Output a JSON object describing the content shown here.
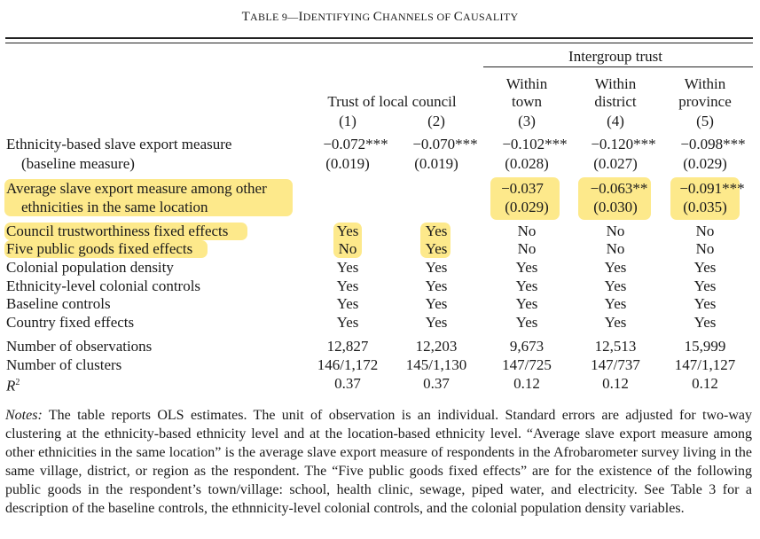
{
  "title": {
    "prefix": "T",
    "rest": "ABLE 9—",
    "w1": "I",
    "r1": "DENTIFYING ",
    "w2": "C",
    "r2": "HANNELS OF ",
    "w3": "C",
    "r3": "AUSALITY"
  },
  "headers": {
    "group_left": "Trust of local council",
    "group_right": "Intergroup trust",
    "cols": [
      {
        "l1": "",
        "l2": "",
        "num": "(1)"
      },
      {
        "l1": "",
        "l2": "",
        "num": "(2)"
      },
      {
        "l1": "Within",
        "l2": "town",
        "num": "(3)"
      },
      {
        "l1": "Within",
        "l2": "district",
        "num": "(4)"
      },
      {
        "l1": "Within",
        "l2": "province",
        "num": "(5)"
      }
    ]
  },
  "rows": {
    "eth": {
      "label1": "Ethnicity-based slave export measure",
      "label2": "(baseline measure)",
      "coef": [
        "−0.072***",
        "−0.070***",
        "−0.102***",
        "−0.120***",
        "−0.098***"
      ],
      "se": [
        "(0.019)",
        "(0.019)",
        "(0.028)",
        "(0.027)",
        "(0.029)"
      ]
    },
    "avg": {
      "label1": "Average slave export measure among other",
      "label2": "ethnicities in the same location",
      "coef": [
        "",
        "",
        "−0.037",
        "−0.063**",
        "−0.091***"
      ],
      "se": [
        "",
        "",
        "(0.029)",
        "(0.030)",
        "(0.035)"
      ]
    },
    "controls": [
      {
        "label": "Council trustworthiness fixed effects",
        "vals": [
          "Yes",
          "Yes",
          "No",
          "No",
          "No"
        ]
      },
      {
        "label": "Five public goods fixed effects",
        "vals": [
          "No",
          "Yes",
          "No",
          "No",
          "No"
        ]
      },
      {
        "label": "Colonial population density",
        "vals": [
          "Yes",
          "Yes",
          "Yes",
          "Yes",
          "Yes"
        ]
      },
      {
        "label": "Ethnicity-level colonial controls",
        "vals": [
          "Yes",
          "Yes",
          "Yes",
          "Yes",
          "Yes"
        ]
      },
      {
        "label": "Baseline controls",
        "vals": [
          "Yes",
          "Yes",
          "Yes",
          "Yes",
          "Yes"
        ]
      },
      {
        "label": "Country fixed effects",
        "vals": [
          "Yes",
          "Yes",
          "Yes",
          "Yes",
          "Yes"
        ]
      }
    ],
    "stats": [
      {
        "label": "Number of observations",
        "vals": [
          "12,827",
          "12,203",
          "9,673",
          "12,513",
          "15,999"
        ]
      },
      {
        "label": "Number of clusters",
        "vals": [
          "146/1,172",
          "145/1,130",
          "147/725",
          "147/737",
          "147/1,127"
        ]
      }
    ],
    "r2": {
      "label": "R",
      "sup": "2",
      "vals": [
        "0.37",
        "0.37",
        "0.12",
        "0.12",
        "0.12"
      ]
    }
  },
  "notes": {
    "label": "Notes:",
    "text": "The table reports OLS estimates. The unit of observation is an individual. Standard errors are adjusted for two-way clustering at the ethnicity-based ethnicity level and at the location-based ethnicity level. “Average slave export measure among other ethnicities in the same location” is the average slave export measure of respondents in the Afrobarometer survey living in the same village, district, or region as the respondent. The “Five public goods fixed effects” are for the existence of the following public goods in the respondent’s town/village: school, health clinic, sewage, piped water, and electricity. See Table 3 for a description of the baseline controls, the ethnnicity-level colonial controls, and the colonial population density variables."
  },
  "colors": {
    "highlight": "#fde98b"
  }
}
